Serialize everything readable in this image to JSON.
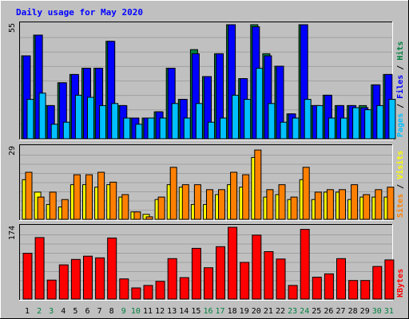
{
  "chart_data": {
    "type": "bar",
    "title": "Daily usage for May 2020",
    "categories": [
      "1",
      "2",
      "3",
      "4",
      "5",
      "6",
      "7",
      "8",
      "9",
      "10",
      "11",
      "12",
      "13",
      "14",
      "15",
      "16",
      "17",
      "18",
      "19",
      "20",
      "21",
      "22",
      "23",
      "24",
      "25",
      "26",
      "27",
      "28",
      "29",
      "30",
      "31"
    ],
    "weekend_days": [
      "2",
      "3",
      "9",
      "10",
      "16",
      "17",
      "23",
      "24",
      "30",
      "31"
    ],
    "panels": [
      {
        "id": "top",
        "axis_max_label": "55",
        "ylim": [
          0,
          55
        ],
        "right_label": [
          {
            "text": "Pages",
            "color": "#00c0ff"
          },
          {
            "text": " / ",
            "color": "#000000"
          },
          {
            "text": "Files",
            "color": "#0000ff"
          },
          {
            "text": " / ",
            "color": "#000000"
          },
          {
            "text": "Hits",
            "color": "#008040"
          }
        ],
        "series": [
          {
            "name": "Hits",
            "color": "#008040",
            "values": [
              40,
              50,
              16,
              27,
              31,
              34,
              34,
              47,
              16,
              10,
              10,
              13,
              34,
              19,
              43,
              30,
              41,
              55,
              29,
              55,
              41,
              35,
              12,
              55,
              16,
              21,
              16,
              16,
              16,
              26,
              31
            ]
          },
          {
            "name": "Files",
            "color": "#0000ff",
            "values": [
              40,
              50,
              16,
              27,
              31,
              34,
              34,
              47,
              16,
              10,
              10,
              13,
              34,
              19,
              41,
              30,
              41,
              55,
              29,
              54,
              40,
              35,
              12,
              55,
              16,
              21,
              16,
              16,
              15,
              26,
              31
            ]
          },
          {
            "name": "Pages",
            "color": "#00c0ff",
            "values": [
              19,
              22,
              7,
              8,
              21,
              20,
              16,
              17,
              10,
              7,
              10,
              10,
              17,
              10,
              17,
              8,
              10,
              21,
              19,
              34,
              17,
              8,
              10,
              19,
              16,
              10,
              10,
              15,
              14,
              16,
              19
            ]
          }
        ]
      },
      {
        "id": "mid",
        "axis_max_label": "29",
        "ylim": [
          0,
          29
        ],
        "right_label": [
          {
            "text": "Sites",
            "color": "#ff8000"
          },
          {
            "text": " / ",
            "color": "#000000"
          },
          {
            "text": "Visits",
            "color": "#ffff00"
          }
        ],
        "series": [
          {
            "name": "Visits",
            "color": "#ffff00",
            "values": [
              16,
              11,
              6,
              5,
              14,
              14,
              13,
              14,
              9,
              3,
              2,
              8,
              14,
              13,
              6,
              6,
              10,
              14,
              13,
              25,
              9,
              10,
              8,
              16,
              8,
              11,
              11,
              8,
              9,
              9,
              9
            ]
          },
          {
            "name": "Sites",
            "color": "#ff8000",
            "values": [
              19,
              9,
              11,
              8,
              18,
              18,
              19,
              15,
              10,
              3,
              1,
              9,
              21,
              14,
              14,
              12,
              12,
              19,
              18,
              28,
              12,
              14,
              9,
              21,
              11,
              12,
              12,
              14,
              10,
              12,
              13
            ]
          }
        ]
      },
      {
        "id": "bot",
        "axis_max_label": "174",
        "ylim": [
          0,
          174
        ],
        "right_label": [
          {
            "text": "KBytes",
            "color": "#ff0000"
          }
        ],
        "series": [
          {
            "name": "KBytes",
            "color": "#ff0000",
            "values": [
              111,
              149,
              46,
              83,
              96,
              104,
              100,
              148,
              49,
              27,
              33,
              43,
              98,
              52,
              123,
              76,
              127,
              174,
              89,
              155,
              115,
              97,
              33,
              169,
              53,
              61,
              98,
              45,
              45,
              79,
              95
            ]
          }
        ]
      }
    ],
    "day_label_color_weekday": "#000000",
    "day_label_color_weekend": "#008040",
    "title_color": "#0000ff",
    "grid": true,
    "legend": "right, vertical text"
  }
}
